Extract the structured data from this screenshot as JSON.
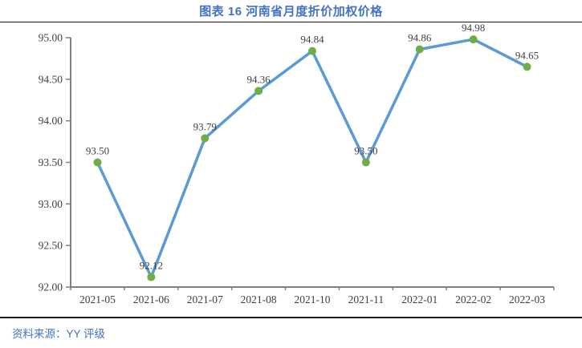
{
  "header": {
    "title": "图表 16 河南省月度折价加权价格"
  },
  "footer": {
    "source_label": "资料来源：YY 评级"
  },
  "chart_data": {
    "type": "line",
    "title": "图表 16 河南省月度折价加权价格",
    "categories": [
      "2021-05",
      "2021-06",
      "2021-07",
      "2021-08",
      "2021-10",
      "2021-11",
      "2022-01",
      "2022-02",
      "2022-03"
    ],
    "series": [
      {
        "name": "月度折价加权价格",
        "values": [
          93.5,
          92.12,
          93.79,
          94.36,
          94.84,
          93.5,
          94.86,
          94.98,
          94.65
        ],
        "data_labels": [
          "93.50",
          "92.12",
          "93.79",
          "94.36",
          "94.84",
          "93.50",
          "94.86",
          "94.98",
          "94.65"
        ]
      }
    ],
    "xlabel": "",
    "ylabel": "",
    "ylim": [
      92.0,
      95.0
    ],
    "ytick_step": 0.5,
    "yticks": [
      "92.00",
      "92.50",
      "93.00",
      "93.50",
      "94.00",
      "94.50",
      "95.00"
    ],
    "grid": false,
    "legend_position": "none",
    "data_labels_position": "above",
    "colors": {
      "line": "#5B9BD5",
      "marker": "#70AD47",
      "axis": "#808080",
      "tick_text": "#404040",
      "data_label_text": "#404040",
      "accent": "#4472C4"
    }
  }
}
